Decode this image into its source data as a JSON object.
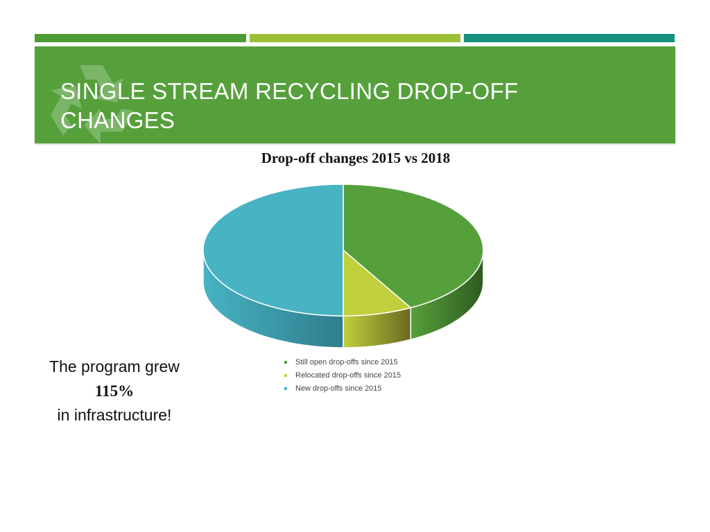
{
  "slide": {
    "title_line1": "SINGLE STREAM RECYCLING DROP-OFF",
    "title_line2": "CHANGES",
    "logo_icon": "recycle-icon",
    "colors": {
      "header": "#56a03c",
      "accent1": "#4e9a35",
      "accent2": "#9cbf3a",
      "accent3": "#16907f"
    }
  },
  "callout": {
    "line1": "The program grew",
    "highlight": "115%",
    "line3": "in infrastructure!"
  },
  "chart_data": {
    "type": "pie",
    "style": "3d",
    "title": "Drop-off changes 2015 vs 2018",
    "categories": [
      "Still open drop-offs since 2015",
      "Relocated drop-offs since 2015",
      "New drop-offs since 2015"
    ],
    "values": [
      42,
      8,
      50
    ],
    "colors": [
      "#56a03c",
      "#c0cf3c",
      "#47b3c3"
    ],
    "side_colors": [
      "#2f5a1f",
      "#6a6a22",
      "#2f7d8c"
    ],
    "legend_position": "right-bottom"
  }
}
